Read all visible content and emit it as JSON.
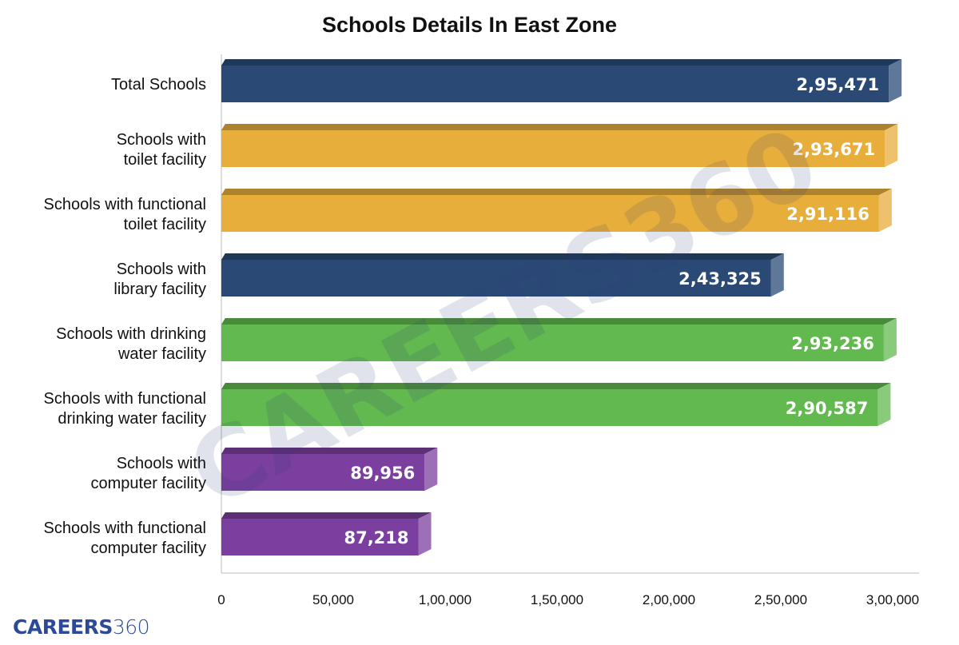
{
  "chart_data": {
    "type": "bar",
    "orientation": "horizontal",
    "title": "Schools Details In East  Zone",
    "categories": [
      [
        "Total Schools"
      ],
      [
        "Schools with",
        "toilet facility"
      ],
      [
        "Schools with functional",
        "toilet facility"
      ],
      [
        "Schools with",
        "library facility"
      ],
      [
        "Schools with drinking",
        "water facility"
      ],
      [
        "Schools with functional",
        "drinking water facility"
      ],
      [
        "Schools with",
        "computer facility"
      ],
      [
        "Schools with functional",
        "computer facility"
      ]
    ],
    "values": [
      295471,
      293671,
      291116,
      243325,
      293236,
      290587,
      89956,
      87218
    ],
    "value_labels": [
      "2,95,471",
      "2,93,671",
      "2,91,116",
      "2,43,325",
      "2,93,236",
      "2,90,587",
      "89,956",
      "87,218"
    ],
    "colors": [
      "#2a4a75",
      "#e8ae3c",
      "#e8ae3c",
      "#2a4a75",
      "#62b94f",
      "#62b94f",
      "#7b3f9f",
      "#7b3f9f"
    ],
    "xlim": [
      0,
      300000
    ],
    "xticks": [
      0,
      50000,
      100000,
      150000,
      200000,
      250000,
      300000
    ],
    "xtick_labels": [
      "0",
      "50,000",
      "1,00,000",
      "1,50,000",
      "2,00,000",
      "2,50,000",
      "3,00,000"
    ],
    "xlabel": "",
    "ylabel": "",
    "grid": false,
    "style": "3d-bars"
  },
  "branding": {
    "logo_bold": "CAREERS",
    "logo_light": "360",
    "watermark": "CAREERS360"
  }
}
